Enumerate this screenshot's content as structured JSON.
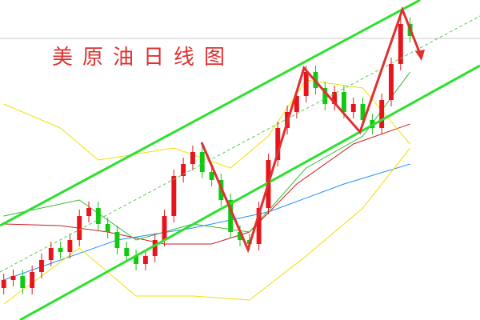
{
  "chart_data": {
    "type": "candlestick",
    "title": "美原油日线图",
    "ylim": [
      0,
      400
    ],
    "xlim": [
      -0.4,
      50.4
    ],
    "up_color": "#e8141b",
    "down_color": "#12c712",
    "open": [
      40,
      50,
      55,
      40,
      60,
      75,
      90,
      85,
      100,
      130,
      140,
      120,
      110,
      90,
      80,
      70,
      80,
      100,
      130,
      180,
      195,
      210,
      185,
      175,
      150,
      110,
      100,
      95,
      140,
      200,
      240,
      260,
      280,
      310,
      290,
      270,
      285,
      260,
      270,
      250,
      240,
      275,
      320,
      370
    ],
    "high": [
      58,
      63,
      63,
      68,
      83,
      98,
      98,
      108,
      138,
      148,
      148,
      128,
      118,
      98,
      88,
      88,
      108,
      138,
      188,
      203,
      218,
      218,
      193,
      183,
      158,
      118,
      108,
      148,
      208,
      248,
      268,
      288,
      318,
      318,
      298,
      293,
      293,
      278,
      278,
      258,
      283,
      328,
      378,
      378
    ],
    "low": [
      32,
      42,
      32,
      32,
      52,
      67,
      77,
      77,
      92,
      122,
      112,
      102,
      82,
      72,
      62,
      62,
      72,
      92,
      122,
      172,
      187,
      177,
      167,
      142,
      102,
      92,
      87,
      87,
      132,
      192,
      232,
      252,
      272,
      282,
      262,
      262,
      252,
      252,
      242,
      232,
      232,
      267,
      312,
      347
    ],
    "close": [
      50,
      55,
      40,
      60,
      75,
      90,
      85,
      100,
      130,
      140,
      120,
      110,
      90,
      80,
      70,
      80,
      100,
      130,
      180,
      195,
      210,
      185,
      175,
      150,
      110,
      100,
      95,
      140,
      200,
      240,
      260,
      280,
      310,
      290,
      270,
      285,
      260,
      270,
      250,
      240,
      275,
      320,
      370,
      355
    ],
    "overlays": [
      {
        "color": "#cc2020",
        "x": [
          0,
          6,
          11,
          17,
          22,
          26,
          31,
          37,
          43
        ],
        "values": [
          120,
          118,
          110,
          95,
          95,
          110,
          170,
          220,
          245
        ]
      },
      {
        "color": "#1e90ff",
        "x": [
          0,
          12,
          20,
          28,
          36,
          43
        ],
        "values": [
          50,
          100,
          115,
          135,
          170,
          195
        ]
      },
      {
        "color": "#f0e000",
        "x": [
          0,
          6,
          10,
          18,
          24,
          28,
          32,
          38,
          43
        ],
        "values": [
          270,
          240,
          200,
          215,
          190,
          230,
          300,
          290,
          220
        ]
      },
      {
        "color": "#f0e000",
        "x": [
          0,
          8,
          14,
          20,
          26,
          32,
          38,
          43
        ],
        "values": [
          20,
          90,
          30,
          30,
          25,
          80,
          140,
          215
        ]
      },
      {
        "color": "#33bb33",
        "x": [
          0,
          8,
          14,
          20,
          26,
          32,
          38,
          43
        ],
        "values": [
          130,
          150,
          100,
          120,
          110,
          190,
          230,
          310
        ]
      }
    ]
  }
}
